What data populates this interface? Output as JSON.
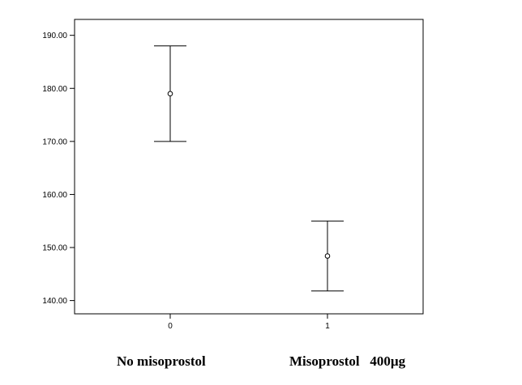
{
  "chart_data": {
    "type": "scatter",
    "subtype": "error-bar",
    "categories": [
      "0",
      "1"
    ],
    "series": [
      {
        "points": [
          {
            "x": "0",
            "mean": 179.0,
            "lower": 170.0,
            "upper": 188.0
          },
          {
            "x": "1",
            "mean": 148.4,
            "lower": 141.8,
            "upper": 155.0
          }
        ]
      }
    ],
    "yticks": [
      "140.00",
      "150.00",
      "160.00",
      "170.00",
      "180.00",
      "190.00"
    ],
    "ylim": [
      137.5,
      193.0
    ],
    "grid": false,
    "legend": "none",
    "group_labels": [
      "No misoprostol",
      "Misoprostol   400µg"
    ]
  }
}
